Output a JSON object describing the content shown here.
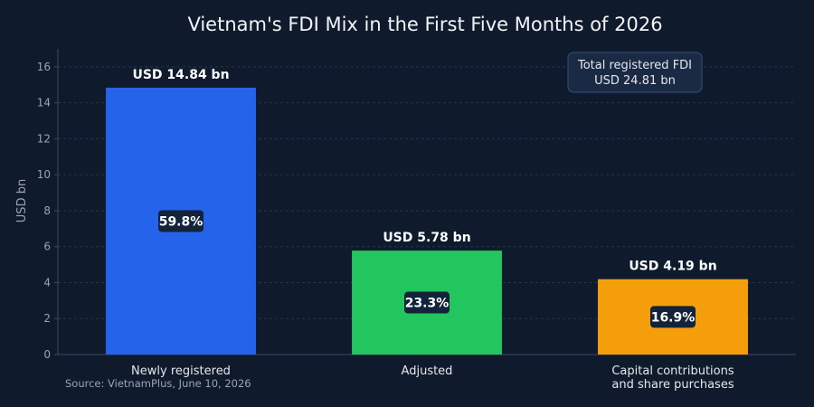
{
  "chart_data": {
    "type": "bar",
    "title": "Vietnam's FDI Mix in the First Five Months of 2026",
    "xlabel": "",
    "ylabel": "USD bn",
    "ylim": [
      0,
      17
    ],
    "yticks": [
      0,
      2,
      4,
      6,
      8,
      10,
      12,
      14,
      16
    ],
    "grid": true,
    "categories": [
      [
        "Newly registered"
      ],
      [
        "Adjusted"
      ],
      [
        "Capital contributions",
        "and share purchases"
      ]
    ],
    "values": [
      14.84,
      5.78,
      4.19
    ],
    "value_labels": [
      "USD 14.84 bn",
      "USD 5.78 bn",
      "USD 4.19 bn"
    ],
    "share_labels": [
      "59.8%",
      "23.3%",
      "16.9%"
    ],
    "colors": [
      "#2563eb",
      "#22c55e",
      "#f59e0b"
    ],
    "annotation": {
      "lines": [
        "Total registered FDI",
        "USD 24.81 bn"
      ],
      "placement": "top-right"
    },
    "source": "Source: VietnamPlus, June 10, 2026"
  }
}
